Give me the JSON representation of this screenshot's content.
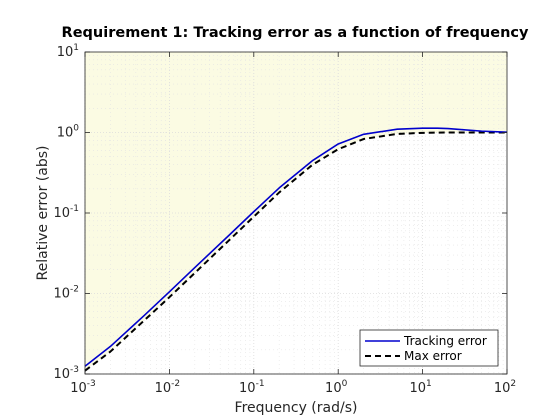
{
  "chart_data": {
    "type": "line",
    "title": "Requirement 1: Tracking error as a function of frequency",
    "xlabel": "Frequency (rad/s)",
    "ylabel": "Relative error (abs)",
    "xscale": "log",
    "yscale": "log",
    "xlim": [
      0.001,
      100
    ],
    "ylim": [
      0.001,
      10
    ],
    "x_ticks": [
      {
        "base": "10",
        "exp": "-3",
        "value": 0.001
      },
      {
        "base": "10",
        "exp": "-2",
        "value": 0.01
      },
      {
        "base": "10",
        "exp": "-1",
        "value": 0.1
      },
      {
        "base": "10",
        "exp": "0",
        "value": 1
      },
      {
        "base": "10",
        "exp": "1",
        "value": 10
      },
      {
        "base": "10",
        "exp": "2",
        "value": 100
      }
    ],
    "y_ticks": [
      {
        "base": "10",
        "exp": "-3",
        "value": 0.001
      },
      {
        "base": "10",
        "exp": "-2",
        "value": 0.01
      },
      {
        "base": "10",
        "exp": "-1",
        "value": 0.1
      },
      {
        "base": "10",
        "exp": "0",
        "value": 1
      },
      {
        "base": "10",
        "exp": "1",
        "value": 10
      }
    ],
    "grid": true,
    "legend_position": "bottom-right",
    "shaded_region": {
      "color": "#fbfbe3",
      "bound_series": "Max error",
      "side": "above"
    },
    "series": [
      {
        "name": "Tracking error",
        "color": "#0000cd",
        "style": "solid",
        "x": [
          0.001,
          0.002,
          0.005,
          0.01,
          0.02,
          0.05,
          0.1,
          0.2,
          0.5,
          1,
          2,
          5,
          10,
          15,
          20,
          50,
          100
        ],
        "y": [
          0.00125,
          0.0022,
          0.0053,
          0.0105,
          0.021,
          0.052,
          0.104,
          0.205,
          0.45,
          0.72,
          0.95,
          1.1,
          1.13,
          1.13,
          1.12,
          1.04,
          1.01
        ]
      },
      {
        "name": "Max error",
        "color": "#000000",
        "style": "dashed",
        "x": [
          0.001,
          0.002,
          0.005,
          0.01,
          0.02,
          0.05,
          0.1,
          0.2,
          0.5,
          1,
          2,
          5,
          10,
          20,
          50,
          100
        ],
        "y": [
          0.0011,
          0.0019,
          0.0046,
          0.009,
          0.018,
          0.045,
          0.09,
          0.18,
          0.4,
          0.62,
          0.83,
          0.96,
          0.99,
          1.0,
          1.0,
          1.0
        ]
      }
    ]
  }
}
